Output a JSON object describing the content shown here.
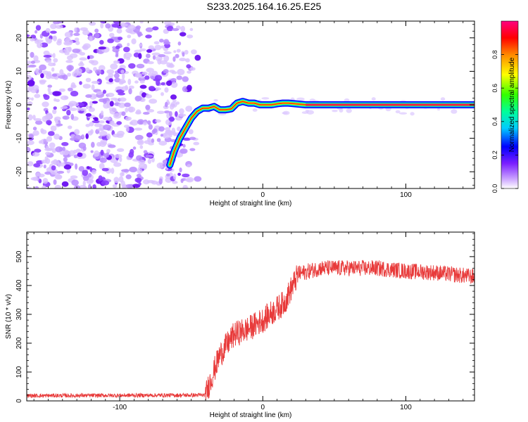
{
  "title": "S233.2025.164.16.25.E25",
  "colors": {
    "snr_line": "#e83a3a",
    "axis": "#000000"
  },
  "chart_data": [
    {
      "type": "heatmap",
      "xlabel": "Height of straight line (km)",
      "ylabel": "Frequency (Hz)",
      "xlim": [
        -165,
        148
      ],
      "ylim": [
        -25,
        25
      ],
      "xticks": [
        -100,
        0,
        100
      ],
      "xtick_labels": [
        "-100",
        "0",
        "100"
      ],
      "yticks": [
        -20,
        -10,
        0,
        10,
        20
      ],
      "ytick_labels": [
        "-20",
        "-10",
        "0",
        "10",
        "20"
      ],
      "colorbar": {
        "label": "Normalized spectral amplitude",
        "range": [
          0,
          1
        ],
        "ticks": [
          0,
          0.2,
          0.4,
          0.6,
          0.8
        ],
        "tick_labels": [
          "0.0",
          "0.2",
          "0.4",
          "0.6",
          "0.8"
        ],
        "colormap": "rainbow (violet to magenta)"
      },
      "ridge": {
        "x": [
          -65,
          -62,
          -58,
          -54,
          -50,
          -46,
          -42,
          -38,
          -34,
          -30,
          -26,
          -22,
          -18,
          -14,
          -10,
          -6,
          -2,
          2,
          6,
          10,
          14,
          18,
          30,
          60,
          90,
          120,
          148
        ],
        "y": [
          -18,
          -14,
          -10,
          -7,
          -4,
          -2,
          -1,
          -1,
          -0.5,
          -1.5,
          -1.5,
          -1.2,
          0.5,
          1,
          0.5,
          0.5,
          0,
          0,
          0,
          0.3,
          0.5,
          0.5,
          0,
          0,
          0,
          0,
          0
        ]
      },
      "noise_region_x": [
        -165,
        -50
      ]
    },
    {
      "type": "line",
      "xlabel": "Height of straight line (km)",
      "ylabel": "SNR (10 * v/v)",
      "xlim": [
        -165,
        148
      ],
      "ylim": [
        0,
        585
      ],
      "xticks": [
        -100,
        0,
        100
      ],
      "xtick_labels": [
        "-100",
        "0",
        "100"
      ],
      "yticks": [
        0,
        100,
        200,
        300,
        400,
        500
      ],
      "ytick_labels": [
        "0",
        "100",
        "200",
        "300",
        "400",
        "500"
      ],
      "trend": {
        "x": [
          -165,
          -40,
          -38,
          -30,
          -20,
          -10,
          0,
          10,
          15,
          20,
          25,
          40,
          60,
          80,
          100,
          120,
          148
        ],
        "y": [
          18,
          20,
          50,
          160,
          230,
          250,
          280,
          320,
          340,
          390,
          440,
          460,
          460,
          460,
          450,
          445,
          430
        ]
      }
    }
  ]
}
